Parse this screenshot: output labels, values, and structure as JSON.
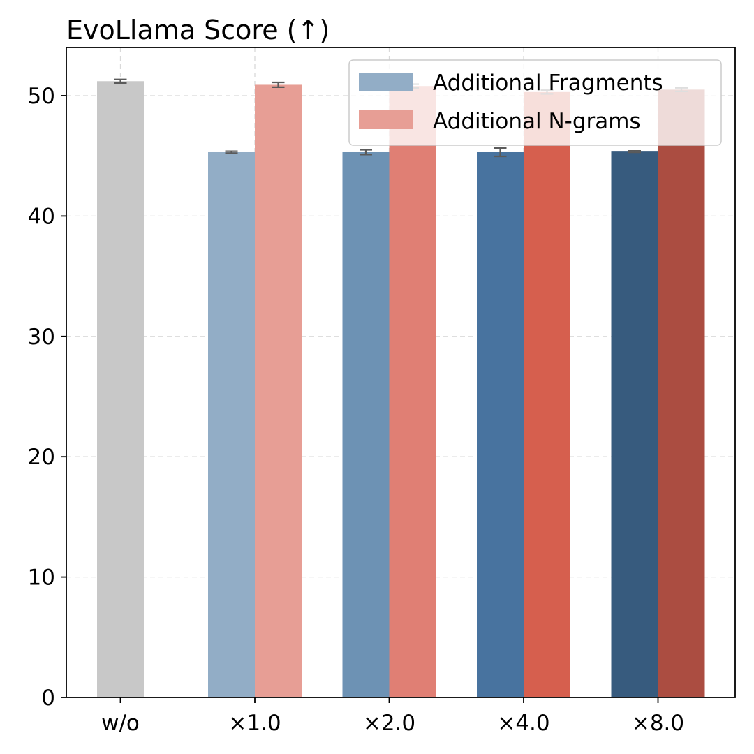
{
  "chart_data": {
    "type": "bar",
    "title": "EvoLlama Score (↑)",
    "xlabel": "",
    "ylabel": "",
    "ylim": [
      0,
      54
    ],
    "yticks": [
      0,
      10,
      20,
      30,
      40,
      50
    ],
    "categories": [
      "w/o",
      "×1.0",
      "×2.0",
      "×4.0",
      "×8.0"
    ],
    "grid": true,
    "legend_position": "top-right",
    "baseline": {
      "category": "w/o",
      "value": 51.2,
      "error": 0.15,
      "color": "#c8c8c8"
    },
    "series": [
      {
        "name": "Additional Fragments",
        "legend_color": "#92adc6",
        "values": [
          null,
          45.3,
          45.3,
          45.3,
          45.35
        ],
        "errors": [
          null,
          0.08,
          0.2,
          0.35,
          0.06
        ],
        "colors": [
          null,
          "#92adc6",
          "#6d92b4",
          "#48739f",
          "#375b7e"
        ]
      },
      {
        "name": "Additional N-grams",
        "legend_color": "#e79e95",
        "values": [
          null,
          50.9,
          50.8,
          50.3,
          50.5
        ],
        "errors": [
          null,
          0.2,
          0.15,
          0.15,
          0.15
        ],
        "colors": [
          null,
          "#e79e95",
          "#e07f74",
          "#d65f4e",
          "#ab4d41"
        ]
      }
    ]
  }
}
